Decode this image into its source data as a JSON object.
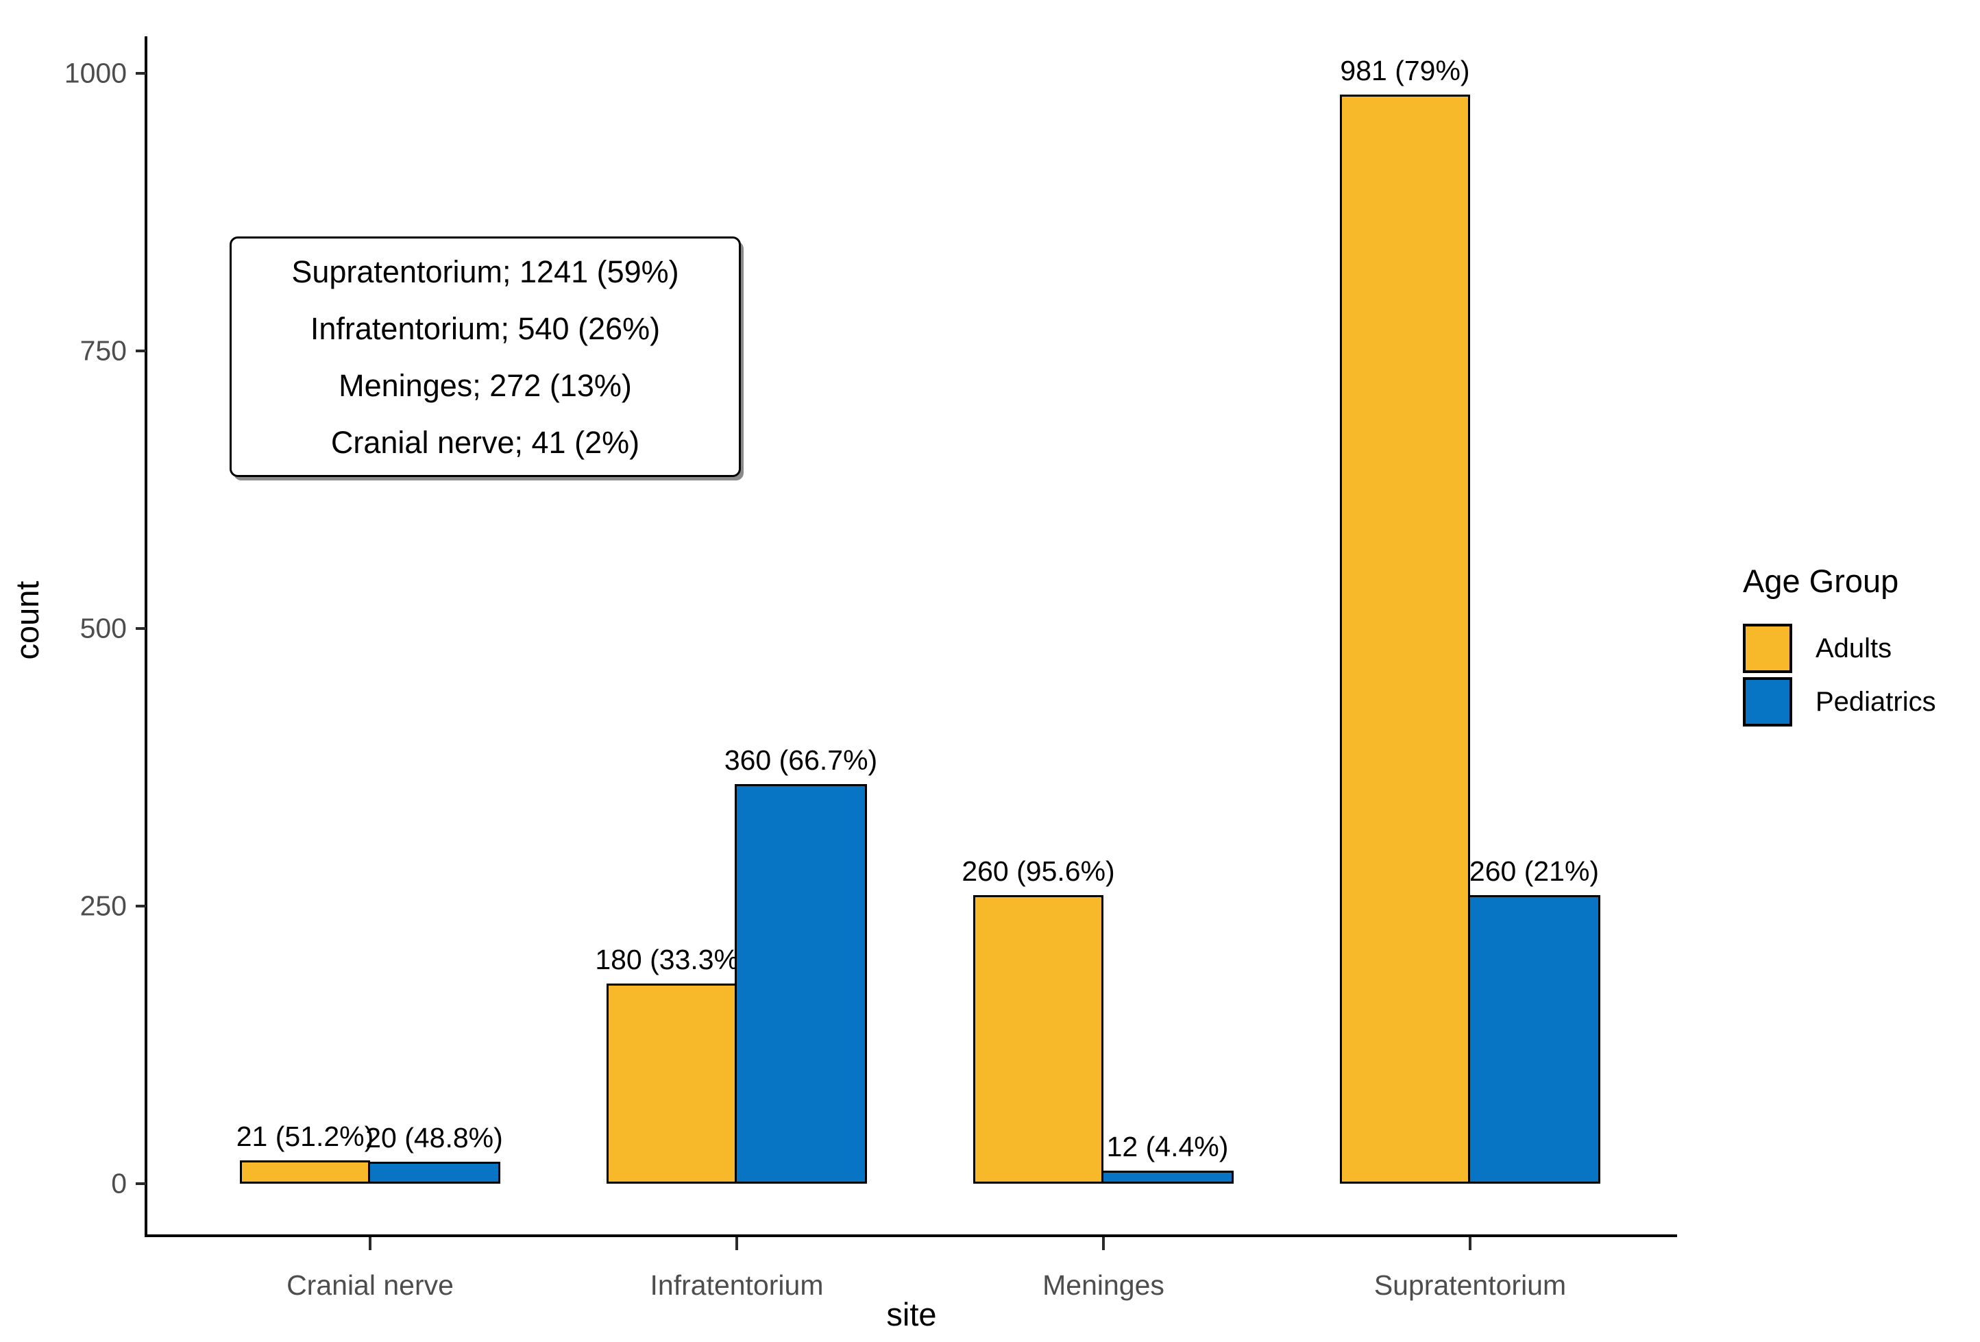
{
  "chart_data": {
    "type": "bar",
    "title": "",
    "xlabel": "site",
    "ylabel": "count",
    "ylim": [
      0,
      1000
    ],
    "yticks": [
      0,
      250,
      500,
      750,
      1000
    ],
    "grid": false,
    "categories": [
      "Cranial nerve",
      "Infratentorium",
      "Meninges",
      "Supratentorium"
    ],
    "series": [
      {
        "name": "Adults",
        "color": "#F7B82A",
        "values": [
          21,
          180,
          260,
          981
        ],
        "labels": [
          "21 (51.2%)",
          "180 (33.3%)",
          "260 (95.6%)",
          "981 (79%)"
        ]
      },
      {
        "name": "Pediatrics",
        "color": "#0874C4",
        "values": [
          20,
          360,
          12,
          260
        ],
        "labels": [
          "20 (48.8%)",
          "360 (66.7%)",
          "12 (4.4%)",
          "260 (21%)"
        ]
      }
    ],
    "legend": {
      "title": "Age Group",
      "position": "right"
    },
    "annotation": {
      "lines": [
        "Supratentorium; 1241 (59%)",
        "Infratentorium; 540 (26%)",
        "Meninges; 272 (13%)",
        "Cranial nerve; 41 (2%)"
      ]
    }
  },
  "colors": {
    "adults": "#F7B82A",
    "pediatrics": "#0874C4",
    "axis": "#000000",
    "tick_label": "#4D4D4D",
    "background": "#FFFFFF"
  }
}
